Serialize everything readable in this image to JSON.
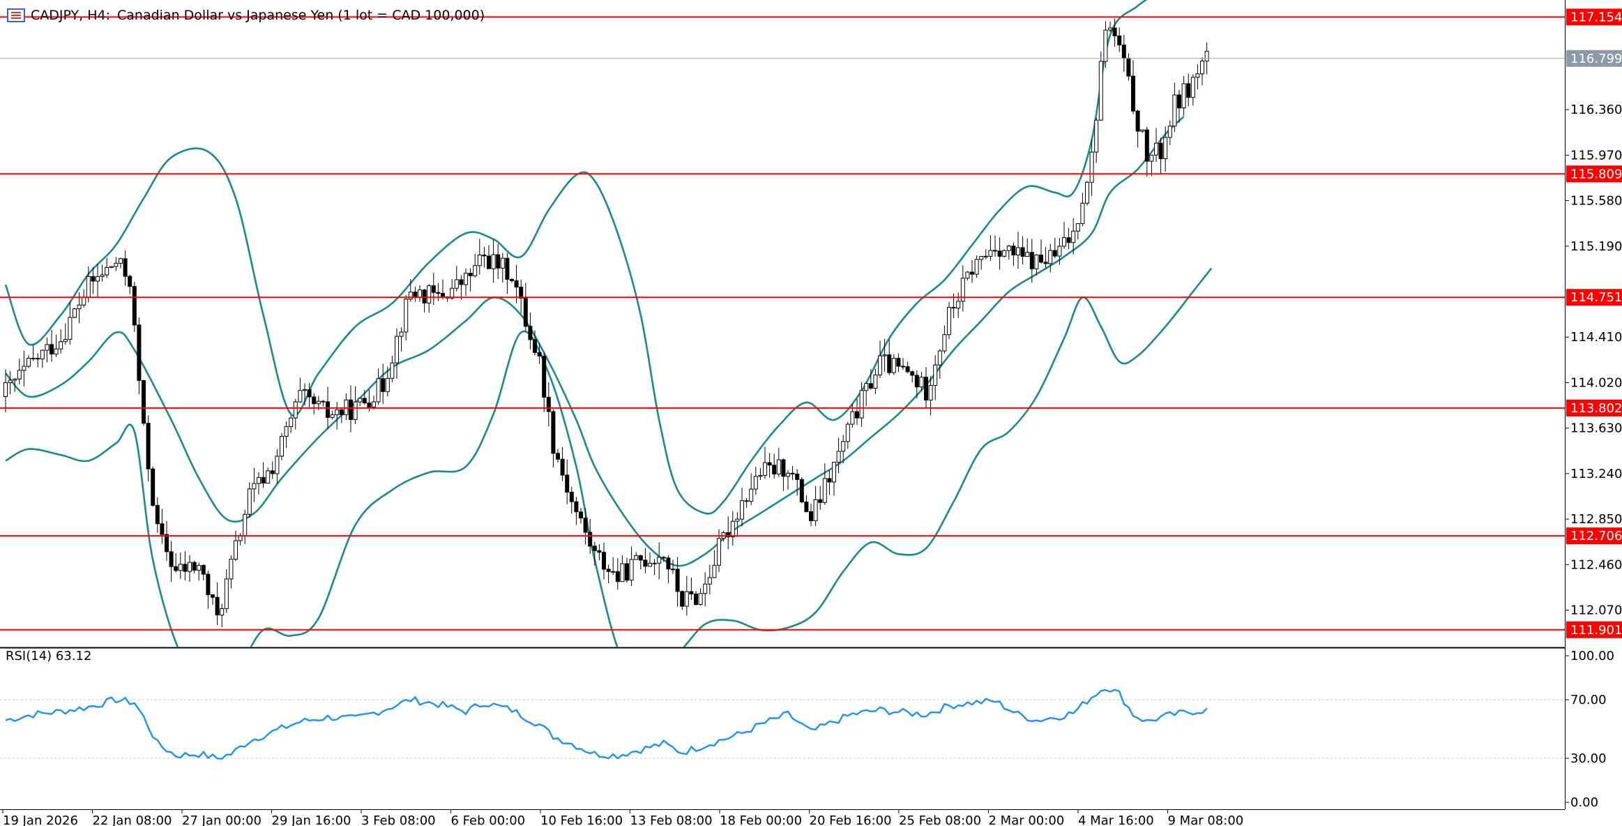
{
  "header": {
    "symbol": "CADJPY, H4:",
    "description": "Canadian Dollar vs Japanese Yen (1 lot = CAD 100,000)"
  },
  "rsi": {
    "label": "RSI(14) 63.12",
    "ticks": [
      "100.00",
      "70.00",
      "30.00",
      "0.00"
    ]
  },
  "price_axis": {
    "ticks": [
      "116.360",
      "115.970",
      "115.580",
      "115.190",
      "114.410",
      "114.020",
      "113.630",
      "113.240",
      "112.850",
      "112.460",
      "112.070"
    ],
    "current_price": "116.799",
    "current_color": "#8c9aa8"
  },
  "levels": [
    {
      "value": "117.154",
      "color": "#ff0000"
    },
    {
      "value": "115.809",
      "color": "#ff0000"
    },
    {
      "value": "114.751",
      "color": "#ff0000"
    },
    {
      "value": "113.802",
      "color": "#ff0000"
    },
    {
      "value": "112.706",
      "color": "#ff0000"
    },
    {
      "value": "111.901",
      "color": "#ff0000"
    }
  ],
  "time_axis": {
    "labels": [
      "19 Jan 2026",
      "22 Jan 08:00",
      "27 Jan 00:00",
      "29 Jan 16:00",
      "3 Feb 08:00",
      "6 Feb 00:00",
      "10 Feb 16:00",
      "13 Feb 08:00",
      "18 Feb 00:00",
      "20 Feb 16:00",
      "25 Feb 08:00",
      "2 Mar 00:00",
      "4 Mar 16:00",
      "9 Mar 08:00"
    ]
  },
  "colors": {
    "bollinger": "#1a8a8a",
    "rsi_line": "#1e90ff",
    "level_line": "#ff0000",
    "candle_bear": "#000000",
    "candle_bull": "#ffffff"
  },
  "chart_data": {
    "type": "candlestick",
    "title": "CADJPY, H4:  Canadian Dollar vs Japanese Yen (1 lot = CAD 100,000)",
    "ylim": [
      111.75,
      117.3
    ],
    "seed": 42,
    "close_path": [
      [
        0,
        113.95
      ],
      [
        6,
        114.2
      ],
      [
        12,
        114.4
      ],
      [
        18,
        114.85
      ],
      [
        24,
        115.05
      ],
      [
        27,
        114.9
      ],
      [
        30,
        113.6
      ],
      [
        33,
        112.75
      ],
      [
        37,
        112.4
      ],
      [
        42,
        112.45
      ],
      [
        46,
        112.0
      ],
      [
        49,
        112.45
      ],
      [
        53,
        113.05
      ],
      [
        58,
        113.3
      ],
      [
        64,
        113.9
      ],
      [
        70,
        113.75
      ],
      [
        76,
        113.8
      ],
      [
        82,
        114.0
      ],
      [
        88,
        114.8
      ],
      [
        94,
        114.75
      ],
      [
        100,
        114.9
      ],
      [
        104,
        115.1
      ],
      [
        110,
        114.95
      ],
      [
        113,
        114.55
      ],
      [
        116,
        114.2
      ],
      [
        119,
        113.5
      ],
      [
        123,
        113.0
      ],
      [
        128,
        112.55
      ],
      [
        133,
        112.35
      ],
      [
        138,
        112.5
      ],
      [
        143,
        112.55
      ],
      [
        147,
        112.15
      ],
      [
        151,
        112.2
      ],
      [
        155,
        112.6
      ],
      [
        160,
        113.0
      ],
      [
        164,
        113.25
      ],
      [
        170,
        113.3
      ],
      [
        175,
        112.85
      ],
      [
        180,
        113.3
      ],
      [
        184,
        113.7
      ],
      [
        190,
        114.2
      ],
      [
        196,
        114.1
      ],
      [
        200,
        113.95
      ],
      [
        205,
        114.6
      ],
      [
        210,
        115.0
      ],
      [
        215,
        115.2
      ],
      [
        220,
        115.1
      ],
      [
        224,
        115.05
      ],
      [
        228,
        115.1
      ],
      [
        232,
        115.3
      ],
      [
        236,
        115.95
      ],
      [
        239,
        117.1
      ],
      [
        242,
        116.9
      ],
      [
        245,
        116.4
      ],
      [
        248,
        115.95
      ],
      [
        251,
        116.0
      ],
      [
        254,
        116.4
      ],
      [
        258,
        116.6
      ],
      [
        261,
        116.85
      ]
    ],
    "bollinger_upper_path": [
      [
        0,
        114.86
      ],
      [
        5,
        114.35
      ],
      [
        12,
        114.6
      ],
      [
        18,
        114.95
      ],
      [
        24,
        115.2
      ],
      [
        30,
        115.6
      ],
      [
        36,
        115.95
      ],
      [
        44,
        116.0
      ],
      [
        50,
        115.6
      ],
      [
        56,
        114.6
      ],
      [
        62,
        113.75
      ],
      [
        68,
        114.1
      ],
      [
        76,
        114.5
      ],
      [
        84,
        114.7
      ],
      [
        92,
        115.05
      ],
      [
        100,
        115.3
      ],
      [
        106,
        115.25
      ],
      [
        112,
        115.1
      ],
      [
        118,
        115.5
      ],
      [
        124,
        115.8
      ],
      [
        128,
        115.75
      ],
      [
        133,
        115.3
      ],
      [
        138,
        114.6
      ],
      [
        142,
        113.7
      ],
      [
        146,
        113.1
      ],
      [
        152,
        112.9
      ],
      [
        156,
        113.0
      ],
      [
        162,
        113.35
      ],
      [
        168,
        113.65
      ],
      [
        174,
        113.85
      ],
      [
        180,
        113.7
      ],
      [
        186,
        113.95
      ],
      [
        192,
        114.4
      ],
      [
        198,
        114.7
      ],
      [
        204,
        114.9
      ],
      [
        210,
        115.2
      ],
      [
        216,
        115.5
      ],
      [
        222,
        115.7
      ],
      [
        228,
        115.65
      ],
      [
        232,
        115.65
      ],
      [
        236,
        116.1
      ],
      [
        240,
        117.0
      ],
      [
        246,
        117.25
      ],
      [
        252,
        117.4
      ]
    ],
    "bollinger_middle_path": [
      [
        0,
        114.1
      ],
      [
        5,
        113.9
      ],
      [
        12,
        114.0
      ],
      [
        18,
        114.2
      ],
      [
        24,
        114.45
      ],
      [
        28,
        114.3
      ],
      [
        36,
        113.7
      ],
      [
        42,
        113.2
      ],
      [
        48,
        112.85
      ],
      [
        54,
        112.9
      ],
      [
        60,
        113.2
      ],
      [
        68,
        113.55
      ],
      [
        76,
        113.85
      ],
      [
        84,
        114.15
      ],
      [
        92,
        114.3
      ],
      [
        100,
        114.55
      ],
      [
        106,
        114.75
      ],
      [
        112,
        114.6
      ],
      [
        118,
        114.2
      ],
      [
        124,
        113.7
      ],
      [
        128,
        113.3
      ],
      [
        134,
        112.9
      ],
      [
        140,
        112.6
      ],
      [
        146,
        112.45
      ],
      [
        152,
        112.55
      ],
      [
        158,
        112.75
      ],
      [
        164,
        112.9
      ],
      [
        170,
        113.05
      ],
      [
        176,
        113.2
      ],
      [
        182,
        113.35
      ],
      [
        188,
        113.55
      ],
      [
        194,
        113.75
      ],
      [
        200,
        114.0
      ],
      [
        206,
        114.3
      ],
      [
        212,
        114.55
      ],
      [
        218,
        114.8
      ],
      [
        224,
        114.95
      ],
      [
        230,
        115.1
      ],
      [
        236,
        115.3
      ],
      [
        240,
        115.65
      ],
      [
        246,
        115.85
      ],
      [
        252,
        116.15
      ],
      [
        256,
        116.3
      ]
    ],
    "bollinger_lower_path": [
      [
        0,
        113.35
      ],
      [
        5,
        113.45
      ],
      [
        12,
        113.4
      ],
      [
        18,
        113.35
      ],
      [
        24,
        113.5
      ],
      [
        28,
        113.6
      ],
      [
        32,
        112.5
      ],
      [
        38,
        111.7
      ],
      [
        44,
        111.5
      ],
      [
        50,
        111.55
      ],
      [
        56,
        111.9
      ],
      [
        62,
        111.85
      ],
      [
        68,
        112.0
      ],
      [
        76,
        112.8
      ],
      [
        84,
        113.1
      ],
      [
        92,
        113.25
      ],
      [
        100,
        113.3
      ],
      [
        106,
        113.75
      ],
      [
        112,
        114.45
      ],
      [
        118,
        114.1
      ],
      [
        124,
        113.3
      ],
      [
        128,
        112.5
      ],
      [
        134,
        111.65
      ],
      [
        140,
        111.6
      ],
      [
        146,
        111.7
      ],
      [
        152,
        111.95
      ],
      [
        158,
        111.98
      ],
      [
        164,
        111.9
      ],
      [
        170,
        111.92
      ],
      [
        176,
        112.05
      ],
      [
        182,
        112.4
      ],
      [
        188,
        112.65
      ],
      [
        194,
        112.55
      ],
      [
        200,
        112.6
      ],
      [
        206,
        113.0
      ],
      [
        212,
        113.45
      ],
      [
        218,
        113.6
      ],
      [
        224,
        113.9
      ],
      [
        230,
        114.4
      ],
      [
        234,
        114.75
      ],
      [
        238,
        114.5
      ],
      [
        242,
        114.2
      ],
      [
        246,
        114.25
      ],
      [
        252,
        114.5
      ],
      [
        258,
        114.8
      ],
      [
        262,
        115.0
      ]
    ],
    "rsi_path": [
      [
        0,
        56
      ],
      [
        6,
        60
      ],
      [
        12,
        62
      ],
      [
        18,
        65
      ],
      [
        24,
        70
      ],
      [
        28,
        68
      ],
      [
        30,
        58
      ],
      [
        33,
        40
      ],
      [
        37,
        32
      ],
      [
        42,
        33
      ],
      [
        46,
        30
      ],
      [
        49,
        33
      ],
      [
        53,
        42
      ],
      [
        58,
        48
      ],
      [
        64,
        55
      ],
      [
        70,
        58
      ],
      [
        76,
        57
      ],
      [
        82,
        63
      ],
      [
        88,
        70
      ],
      [
        94,
        67
      ],
      [
        100,
        62
      ],
      [
        104,
        68
      ],
      [
        110,
        63
      ],
      [
        113,
        58
      ],
      [
        116,
        53
      ],
      [
        119,
        45
      ],
      [
        123,
        40
      ],
      [
        128,
        33
      ],
      [
        133,
        32
      ],
      [
        138,
        36
      ],
      [
        143,
        40
      ],
      [
        147,
        34
      ],
      [
        151,
        38
      ],
      [
        155,
        42
      ],
      [
        160,
        47
      ],
      [
        164,
        53
      ],
      [
        170,
        60
      ],
      [
        175,
        48
      ],
      [
        180,
        55
      ],
      [
        184,
        60
      ],
      [
        190,
        63
      ],
      [
        196,
        61
      ],
      [
        200,
        60
      ],
      [
        205,
        66
      ],
      [
        210,
        68
      ],
      [
        215,
        69
      ],
      [
        220,
        60
      ],
      [
        224,
        56
      ],
      [
        228,
        58
      ],
      [
        232,
        61
      ],
      [
        236,
        72
      ],
      [
        239,
        79
      ],
      [
        242,
        74
      ],
      [
        245,
        60
      ],
      [
        248,
        55
      ],
      [
        251,
        58
      ],
      [
        254,
        60
      ],
      [
        258,
        62
      ],
      [
        261,
        63
      ]
    ]
  }
}
